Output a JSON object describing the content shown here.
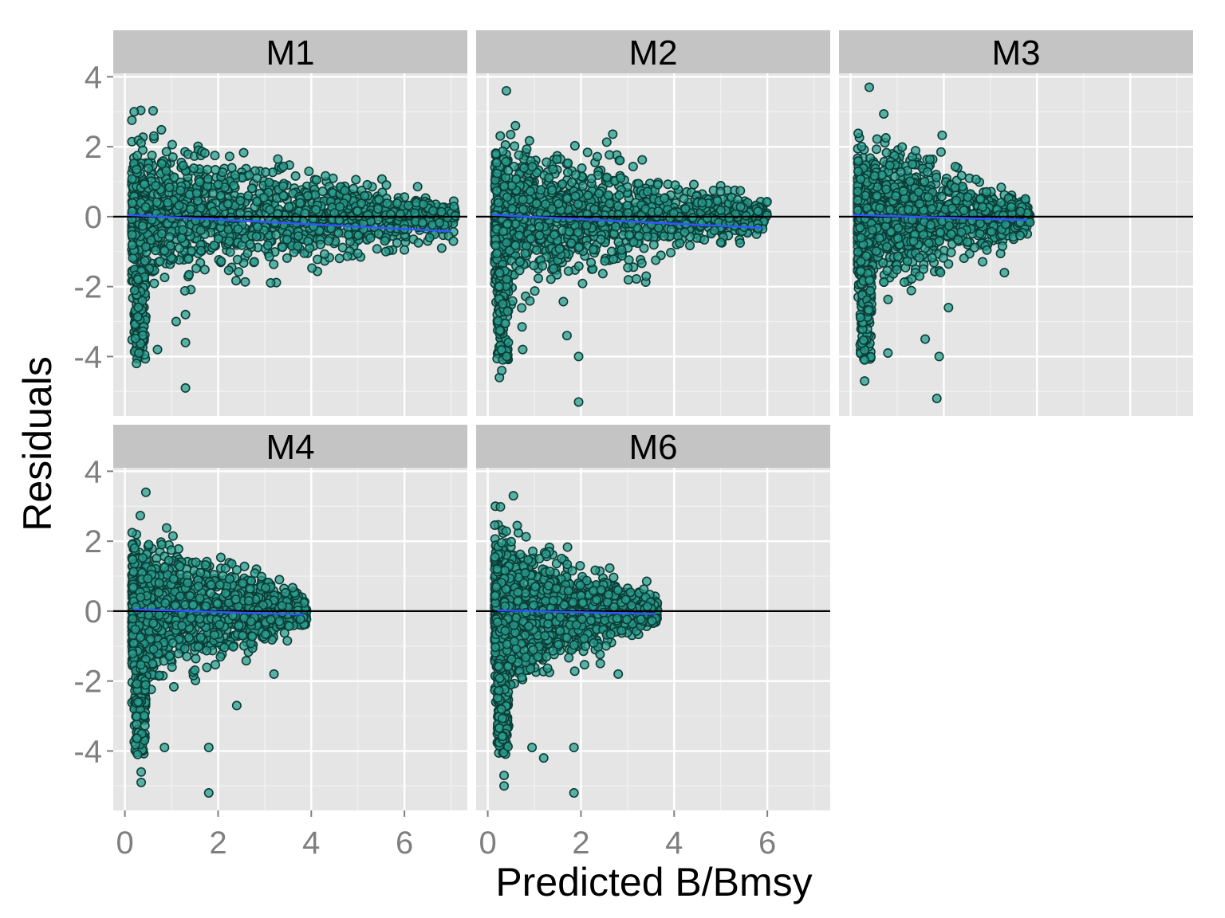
{
  "chart_data": {
    "type": "scatter",
    "xlabel": "Predicted B/Bmsy",
    "ylabel": "Residuals",
    "xlim": [
      -0.25,
      7.35
    ],
    "ylim": [
      -5.7,
      4.1
    ],
    "x_ticks": [
      0,
      2,
      4,
      6
    ],
    "y_ticks": [
      4,
      2,
      0,
      -2,
      -4
    ],
    "grid": true,
    "reference_line_y": 0,
    "point_color": "#2a9d8f",
    "point_edge_color": "#0b3d36",
    "smooth_color": "#3355ff",
    "facets": [
      {
        "label": "M1",
        "x_max": 7.1,
        "trend": [
          [
            0.05,
            0.05
          ],
          [
            7.0,
            -0.42
          ]
        ],
        "outliers": [
          [
            0.2,
            3.0
          ],
          [
            0.25,
            -4.2
          ],
          [
            0.3,
            -3.9
          ],
          [
            0.7,
            -3.8
          ],
          [
            1.1,
            -3.0
          ],
          [
            1.3,
            -3.6
          ],
          [
            1.3,
            -4.9
          ],
          [
            1.3,
            -2.8
          ],
          [
            3.4,
            0.6
          ],
          [
            4.1,
            0.2
          ],
          [
            4.6,
            -0.1
          ],
          [
            5.0,
            -1.05
          ],
          [
            5.6,
            -1.0
          ],
          [
            6.0,
            -0.95
          ],
          [
            6.0,
            -0.35
          ],
          [
            6.3,
            -0.75
          ],
          [
            6.8,
            -0.9
          ],
          [
            6.95,
            -0.55
          ],
          [
            7.05,
            -0.7
          ]
        ]
      },
      {
        "label": "M2",
        "x_max": 6.0,
        "trend": [
          [
            0.1,
            0.05
          ],
          [
            5.9,
            -0.32
          ]
        ],
        "outliers": [
          [
            0.4,
            3.6
          ],
          [
            0.25,
            -4.6
          ],
          [
            0.3,
            -4.4
          ],
          [
            0.75,
            -3.8
          ],
          [
            1.7,
            -3.4
          ],
          [
            1.95,
            -4.0
          ],
          [
            1.95,
            -5.3
          ],
          [
            3.4,
            -1.7
          ],
          [
            4.5,
            0.4
          ],
          [
            4.6,
            0.4
          ],
          [
            5.5,
            -0.3
          ],
          [
            5.9,
            -0.35
          ],
          [
            5.8,
            -0.33
          ]
        ]
      },
      {
        "label": "M3",
        "x_max": 3.85,
        "trend": [
          [
            0.05,
            0.05
          ],
          [
            3.8,
            -0.1
          ]
        ],
        "outliers": [
          [
            0.4,
            3.7
          ],
          [
            0.3,
            -4.7
          ],
          [
            0.3,
            -4.1
          ],
          [
            0.8,
            -3.9
          ],
          [
            1.6,
            -3.5
          ],
          [
            1.9,
            -4.0
          ],
          [
            1.85,
            -5.2
          ],
          [
            2.1,
            -2.6
          ],
          [
            3.3,
            -1.6
          ]
        ]
      },
      {
        "label": "M4",
        "x_max": 3.9,
        "trend": [
          [
            0.2,
            0.05
          ],
          [
            3.85,
            -0.1
          ]
        ],
        "outliers": [
          [
            0.45,
            3.4
          ],
          [
            0.35,
            -4.9
          ],
          [
            0.35,
            -4.6
          ],
          [
            0.85,
            -3.9
          ],
          [
            1.8,
            -3.9
          ],
          [
            1.8,
            -5.2
          ],
          [
            2.4,
            -2.7
          ],
          [
            3.2,
            -1.8
          ]
        ]
      },
      {
        "label": "M6",
        "x_max": 3.65,
        "trend": [
          [
            0.2,
            0.02
          ],
          [
            3.6,
            -0.08
          ]
        ],
        "outliers": [
          [
            0.55,
            3.3
          ],
          [
            0.35,
            -5.0
          ],
          [
            0.35,
            -4.7
          ],
          [
            0.95,
            -3.9
          ],
          [
            1.85,
            -3.9
          ],
          [
            1.85,
            -5.2
          ],
          [
            1.2,
            -4.2
          ],
          [
            2.8,
            -1.8
          ]
        ]
      }
    ]
  }
}
